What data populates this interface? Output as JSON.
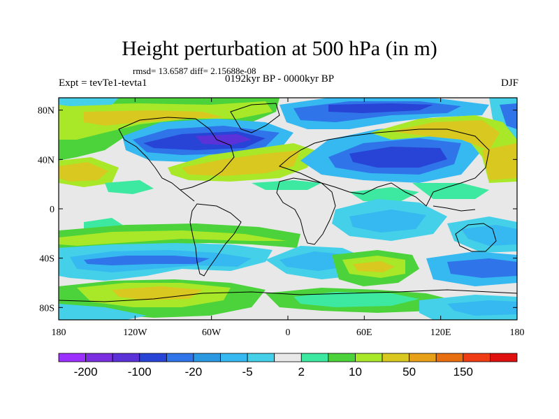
{
  "title": "Height perturbation at 500 hPa (in m)",
  "stats": "rmsd= 13.6587 diff= 2.15688e-08",
  "experiment": "Expt = tevTe1-tevta1",
  "period": "0192kyr BP - 0000kyr BP",
  "season": "DJF",
  "lat_ticks": [
    {
      "label": "80N",
      "lat": 80
    },
    {
      "label": "40N",
      "lat": 40
    },
    {
      "label": "0",
      "lat": 0
    },
    {
      "label": "40S",
      "lat": -40
    },
    {
      "label": "80S",
      "lat": -80
    }
  ],
  "lon_ticks": [
    {
      "label": "180",
      "lon": -180
    },
    {
      "label": "120W",
      "lon": -120
    },
    {
      "label": "60W",
      "lon": -60
    },
    {
      "label": "0",
      "lon": 0
    },
    {
      "label": "60E",
      "lon": 60
    },
    {
      "label": "120E",
      "lon": 120
    },
    {
      "label": "180",
      "lon": 180
    }
  ],
  "colorbar": {
    "colors": [
      "#9b30ff",
      "#7b2ee0",
      "#5a32d8",
      "#2844d6",
      "#2f74e8",
      "#2b98e2",
      "#36b8f0",
      "#43d0e8",
      "#e8e8e8",
      "#3de8a0",
      "#4cd23a",
      "#a8e828",
      "#d8c820",
      "#e8a018",
      "#e86e12",
      "#f03c14",
      "#e01010"
    ],
    "labels": [
      "-200",
      "-100",
      "-20",
      "-5",
      "2",
      "10",
      "50",
      "150"
    ]
  }
}
